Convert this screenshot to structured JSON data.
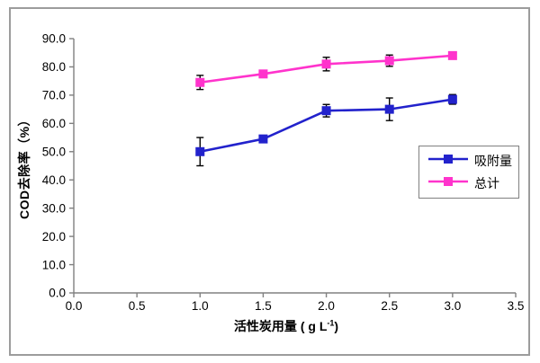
{
  "chart_data": {
    "type": "line",
    "title": "",
    "ylabel": "COD去除率（%）",
    "xlabel": {
      "prefix": "活性炭用量 ( g L",
      "sup": "-1",
      "suffix": ")"
    },
    "xlim": [
      0,
      3.5
    ],
    "ylim": [
      0,
      90
    ],
    "x_ticks": [
      "0.0",
      "0.5",
      "1.0",
      "1.5",
      "2.0",
      "2.5",
      "3.0",
      "3.5"
    ],
    "y_ticks": [
      "0.0",
      "10.0",
      "20.0",
      "30.0",
      "40.0",
      "50.0",
      "60.0",
      "70.0",
      "80.0",
      "90.0"
    ],
    "x": [
      1.0,
      1.5,
      2.0,
      2.5,
      3.0
    ],
    "series": [
      {
        "name": "吸附量",
        "color": "#2222CC",
        "values": [
          50.0,
          54.5,
          64.5,
          65.0,
          68.5
        ],
        "errors": [
          5.0,
          0,
          2.2,
          4.0,
          1.7
        ]
      },
      {
        "name": "总计",
        "color": "#FF33CC",
        "values": [
          74.5,
          77.5,
          81.0,
          82.2,
          84.0
        ],
        "errors": [
          2.5,
          0,
          2.4,
          2.0,
          0
        ]
      }
    ],
    "grid": false,
    "legend_position": "right-middle",
    "marker": "square",
    "styles": {
      "axis_color": "#808080",
      "error_bar_color": "#000000",
      "text_color": "#000000",
      "frame_border_color": "#9C9C9C"
    }
  }
}
